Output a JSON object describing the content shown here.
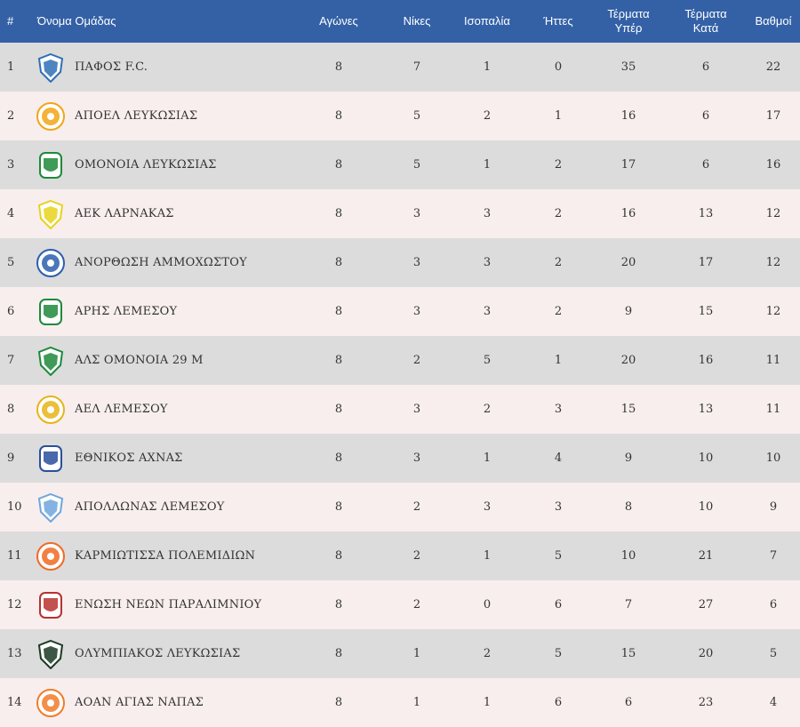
{
  "header": {
    "rank": "#",
    "team": "Όνομα Ομάδας",
    "played": "Αγώνες",
    "wins": "Νίκες",
    "draws": "Ισοπαλία",
    "losses": "Ήττες",
    "goals_for_1": "Τέρματα",
    "goals_for_2": "Υπέρ",
    "goals_against_1": "Τέρματα",
    "goals_against_2": "Κατά",
    "points": "Βαθμοί"
  },
  "rows": [
    {
      "rank": "1",
      "team": "ΠΑΦΟΣ F.C.",
      "logo": "pafos-crest-icon",
      "logo_color": "#2f6fb5",
      "played": "8",
      "wins": "7",
      "draws": "1",
      "losses": "0",
      "gf": "35",
      "ga": "6",
      "pts": "22"
    },
    {
      "rank": "2",
      "team": "ΑΠΟΕΛ ΛΕΥΚΩΣΙΑΣ",
      "logo": "apoel-crest-icon",
      "logo_color": "#f2a515",
      "played": "8",
      "wins": "5",
      "draws": "2",
      "losses": "1",
      "gf": "16",
      "ga": "6",
      "pts": "17"
    },
    {
      "rank": "3",
      "team": "ΟΜΟΝΟΙΑ ΛΕΥΚΩΣΙΑΣ",
      "logo": "omonoia-crest-icon",
      "logo_color": "#1d8a3a",
      "played": "8",
      "wins": "5",
      "draws": "1",
      "losses": "2",
      "gf": "17",
      "ga": "6",
      "pts": "16"
    },
    {
      "rank": "4",
      "team": "ΑΕΚ ΛΑΡΝΑΚΑΣ",
      "logo": "aek-crest-icon",
      "logo_color": "#e6d31c",
      "played": "8",
      "wins": "3",
      "draws": "3",
      "losses": "2",
      "gf": "16",
      "ga": "13",
      "pts": "12"
    },
    {
      "rank": "5",
      "team": "ΑΝΟΡΘΩΣΗ ΑΜΜΟΧΩΣΤΟΥ",
      "logo": "anorthosis-crest-icon",
      "logo_color": "#2b5fae",
      "played": "8",
      "wins": "3",
      "draws": "3",
      "losses": "2",
      "gf": "20",
      "ga": "17",
      "pts": "12"
    },
    {
      "rank": "6",
      "team": "ΑΡΗΣ ΛΕΜΕΣΟΥ",
      "logo": "aris-crest-icon",
      "logo_color": "#1f8a3c",
      "played": "8",
      "wins": "3",
      "draws": "3",
      "losses": "2",
      "gf": "9",
      "ga": "15",
      "pts": "12"
    },
    {
      "rank": "7",
      "team": "ΑΛΣ ΟΜΟΝΟΙΑ 29 Μ",
      "logo": "als-omonoia-crest-icon",
      "logo_color": "#1d8a3a",
      "played": "8",
      "wins": "2",
      "draws": "5",
      "losses": "1",
      "gf": "20",
      "ga": "16",
      "pts": "11"
    },
    {
      "rank": "8",
      "team": "ΑΕΛ ΛΕΜΕΣΟΥ",
      "logo": "ael-crest-icon",
      "logo_color": "#e7b418",
      "played": "8",
      "wins": "3",
      "draws": "2",
      "losses": "3",
      "gf": "15",
      "ga": "13",
      "pts": "11"
    },
    {
      "rank": "9",
      "team": "ΕΘΝΙΚΟΣ ΑΧΝΑΣ",
      "logo": "ethnikos-crest-icon",
      "logo_color": "#2a4f9c",
      "played": "8",
      "wins": "3",
      "draws": "1",
      "losses": "4",
      "gf": "9",
      "ga": "10",
      "pts": "10"
    },
    {
      "rank": "10",
      "team": "ΑΠΟΛΛΩΝΑΣ ΛΕΜΕΣΟΥ",
      "logo": "apollon-crest-icon",
      "logo_color": "#6ea6dc",
      "played": "8",
      "wins": "2",
      "draws": "3",
      "losses": "3",
      "gf": "8",
      "ga": "10",
      "pts": "9"
    },
    {
      "rank": "11",
      "team": "ΚΑΡΜΙΩΤΙΣΣΑ ΠΟΛΕΜΙΔΙΩΝ",
      "logo": "karmiotissa-crest-icon",
      "logo_color": "#f06a25",
      "played": "8",
      "wins": "2",
      "draws": "1",
      "losses": "5",
      "gf": "10",
      "ga": "21",
      "pts": "7"
    },
    {
      "rank": "12",
      "team": "ΕΝΩΣΗ ΝΕΩΝ ΠΑΡΑΛΙΜΝΙΟΥ",
      "logo": "enosis-crest-icon",
      "logo_color": "#b8322f",
      "played": "8",
      "wins": "2",
      "draws": "0",
      "losses": "6",
      "gf": "7",
      "ga": "27",
      "pts": "6"
    },
    {
      "rank": "13",
      "team": "ΟΛΥΜΠΙΑΚΟΣ ΛΕΥΚΩΣΙΑΣ",
      "logo": "olympiakos-crest-icon",
      "logo_color": "#1a3a22",
      "played": "8",
      "wins": "1",
      "draws": "2",
      "losses": "5",
      "gf": "15",
      "ga": "20",
      "pts": "5"
    },
    {
      "rank": "14",
      "team": "ΑΟΑΝ ΑΓΙΑΣ ΝΑΠΑΣ",
      "logo": "aoan-crest-icon",
      "logo_color": "#f07c2a",
      "played": "8",
      "wins": "1",
      "draws": "1",
      "losses": "6",
      "gf": "6",
      "ga": "23",
      "pts": "4"
    }
  ]
}
